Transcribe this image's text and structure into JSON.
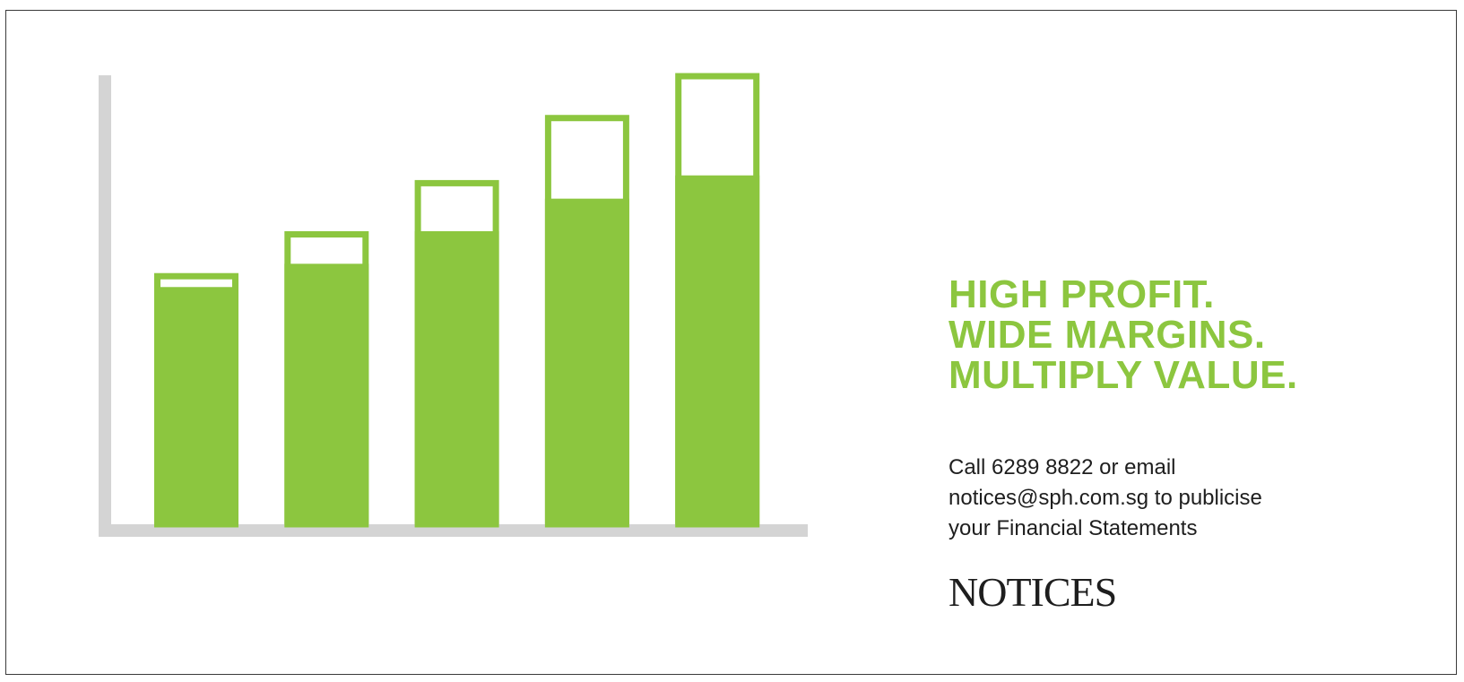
{
  "colors": {
    "accent": "#8cc63f",
    "axis": "#d4d4d4",
    "text": "#1e1e1e",
    "border": "#3a3a3a"
  },
  "chart_data": {
    "type": "bar",
    "bars": [
      {
        "filled": 51,
        "total": 54
      },
      {
        "filled": 56,
        "total": 63
      },
      {
        "filled": 63,
        "total": 74
      },
      {
        "filled": 70,
        "total": 88
      },
      {
        "filled": 75,
        "total": 97
      }
    ],
    "ylim": [
      0,
      105
    ],
    "grid": false
  },
  "headline": {
    "line1": "HIGH PROFIT.",
    "line2": "WIDE MARGINS.",
    "line3": "MULTIPLY VALUE."
  },
  "cta": {
    "line1": "Call 6289 8822 or email",
    "line2": "notices@sph.com.sg to publicise",
    "line3": "your Financial Statements"
  },
  "logo": {
    "text": "NOTICES"
  }
}
